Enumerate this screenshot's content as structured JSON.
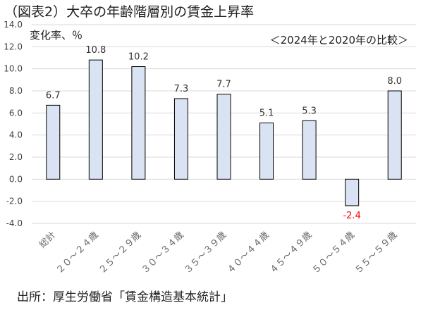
{
  "chart_data": {
    "type": "bar",
    "title": "（図表2）大卒の年齢階層別の賃金上昇率",
    "ylabel": "変化率、％",
    "note": "＜2024年と2020年の比較＞",
    "source": "出所：厚生労働省「賃金構造基本統計」",
    "categories": [
      "総計",
      "２０～２４歳",
      "２５～２９歳",
      "３０～３４歳",
      "３５～３９歳",
      "４０～４４歳",
      "４５～４９歳",
      "５０～５４歳",
      "５５～５９歳"
    ],
    "values": [
      6.7,
      10.8,
      10.2,
      7.3,
      7.7,
      5.1,
      5.3,
      -2.4,
      8.0
    ],
    "value_labels": [
      "6.7",
      "10.8",
      "10.2",
      "7.3",
      "7.7",
      "5.1",
      "5.3",
      "-2.4",
      "8.0"
    ],
    "ylim": [
      -4.0,
      14.0
    ],
    "yticks": [
      -4.0,
      -2.0,
      0.0,
      2.0,
      4.0,
      6.0,
      8.0,
      10.0,
      12.0,
      14.0
    ],
    "ytick_labels": [
      "-4.0",
      "-2.0",
      "0.0",
      "2.0",
      "4.0",
      "6.0",
      "8.0",
      "10.0",
      "12.0",
      "14.0"
    ],
    "grid": true,
    "colors": {
      "bar_fill": "#dae3f3",
      "bar_stroke": "#000000",
      "negative_label": "#ff0000",
      "label": "#333333",
      "gridline": "#d9d9d9"
    }
  }
}
